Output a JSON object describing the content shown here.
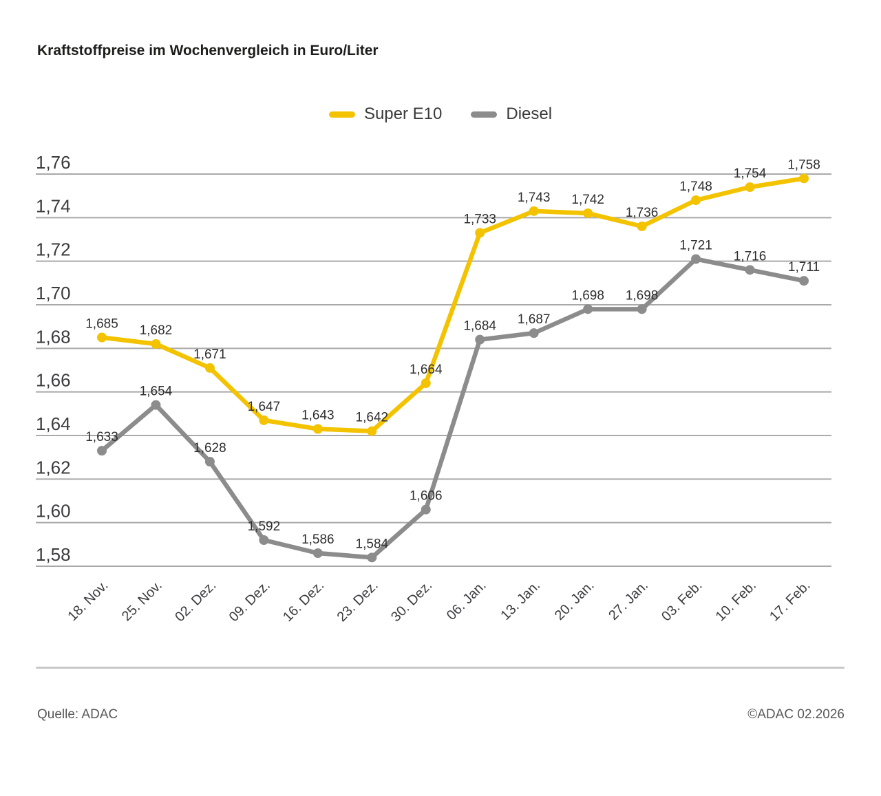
{
  "title": "Kraftstoffpreise im Wochenvergleich in Euro/Liter",
  "legend": {
    "items": [
      {
        "label": "Super E10",
        "color": "#F3C300"
      },
      {
        "label": "Diesel",
        "color": "#8C8C8C"
      }
    ]
  },
  "footer": {
    "source": "Quelle: ADAC",
    "copyright": "©ADAC 02.2026"
  },
  "colors": {
    "super_e10": "#F3C300",
    "diesel": "#8C8C8C",
    "grid": "#A9A9A9",
    "axis_text": "#3C3C40",
    "value_text": "#2E2E2E",
    "title_text": "#1D1D1B",
    "footer_text": "#575757",
    "divider": "#C8C8C8",
    "background": "#FFFFFF"
  },
  "chart_data": {
    "type": "line",
    "title": "Kraftstoffpreise im Wochenvergleich in Euro/Liter",
    "categories": [
      "18. Nov.",
      "25. Nov.",
      "02. Dez.",
      "09. Dez.",
      "16. Dez.",
      "23. Dez.",
      "30. Dez.",
      "06. Jan.",
      "13. Jan.",
      "20. Jan.",
      "27. Jan.",
      "03. Feb.",
      "10. Feb.",
      "17. Feb."
    ],
    "series": [
      {
        "name": "Super E10",
        "color": "#F3C300",
        "values": [
          1.685,
          1.682,
          1.671,
          1.647,
          1.643,
          1.642,
          1.664,
          1.733,
          1.743,
          1.742,
          1.736,
          1.748,
          1.754,
          1.758
        ],
        "labels": [
          "1,685",
          "1,682",
          "1,671",
          "1,647",
          "1,643",
          "1,642",
          "1,664",
          "1,733",
          "1,743",
          "1,742",
          "1,736",
          "1,748",
          "1,754",
          "1,758"
        ]
      },
      {
        "name": "Diesel",
        "color": "#8C8C8C",
        "values": [
          1.633,
          1.654,
          1.628,
          1.592,
          1.586,
          1.584,
          1.606,
          1.684,
          1.687,
          1.698,
          1.698,
          1.721,
          1.716,
          1.711
        ],
        "labels": [
          "1,633",
          "1,654",
          "1,628",
          "1,592",
          "1,586",
          "1,584",
          "1,606",
          "1,684",
          "1,687",
          "1,698",
          "1,698",
          "1,721",
          "1,716",
          "1,711"
        ]
      }
    ],
    "ylim": [
      1.58,
      1.76
    ],
    "ytick_step": 0.02,
    "ytick_labels": [
      "1,58",
      "1,60",
      "1,62",
      "1,64",
      "1,66",
      "1,68",
      "1,70",
      "1,72",
      "1,74",
      "1,76"
    ],
    "grid": true,
    "legend_position": "top-center",
    "xlabel": "",
    "ylabel": ""
  }
}
